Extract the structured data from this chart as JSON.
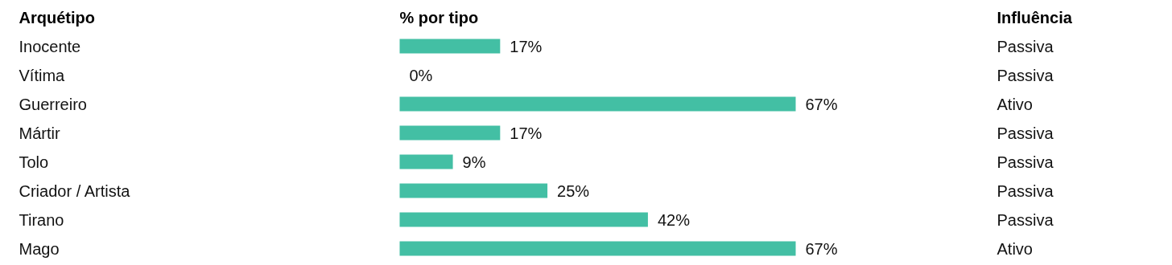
{
  "chart_data": {
    "type": "bar",
    "orientation": "horizontal",
    "ylabel": "Arquétipo",
    "xlabel": "% por tipo",
    "categories": [
      "Inocente",
      "Vítima",
      "Guerreiro",
      "Mártir",
      "Tolo",
      "Criador / Artista",
      "Tirano",
      "Mago"
    ],
    "values": [
      17,
      0,
      67,
      17,
      9,
      25,
      42,
      67
    ],
    "value_labels": [
      "17%",
      "0%",
      "67%",
      "17%",
      "9%",
      "25%",
      "42%",
      "67%"
    ],
    "color": "#43bfa4",
    "annotations": [
      "Influência",
      "Passiva",
      "Passiva",
      "Ativo",
      "Passiva",
      "Passiva",
      "Passiva",
      "Passiva",
      "Ativo"
    ]
  }
}
